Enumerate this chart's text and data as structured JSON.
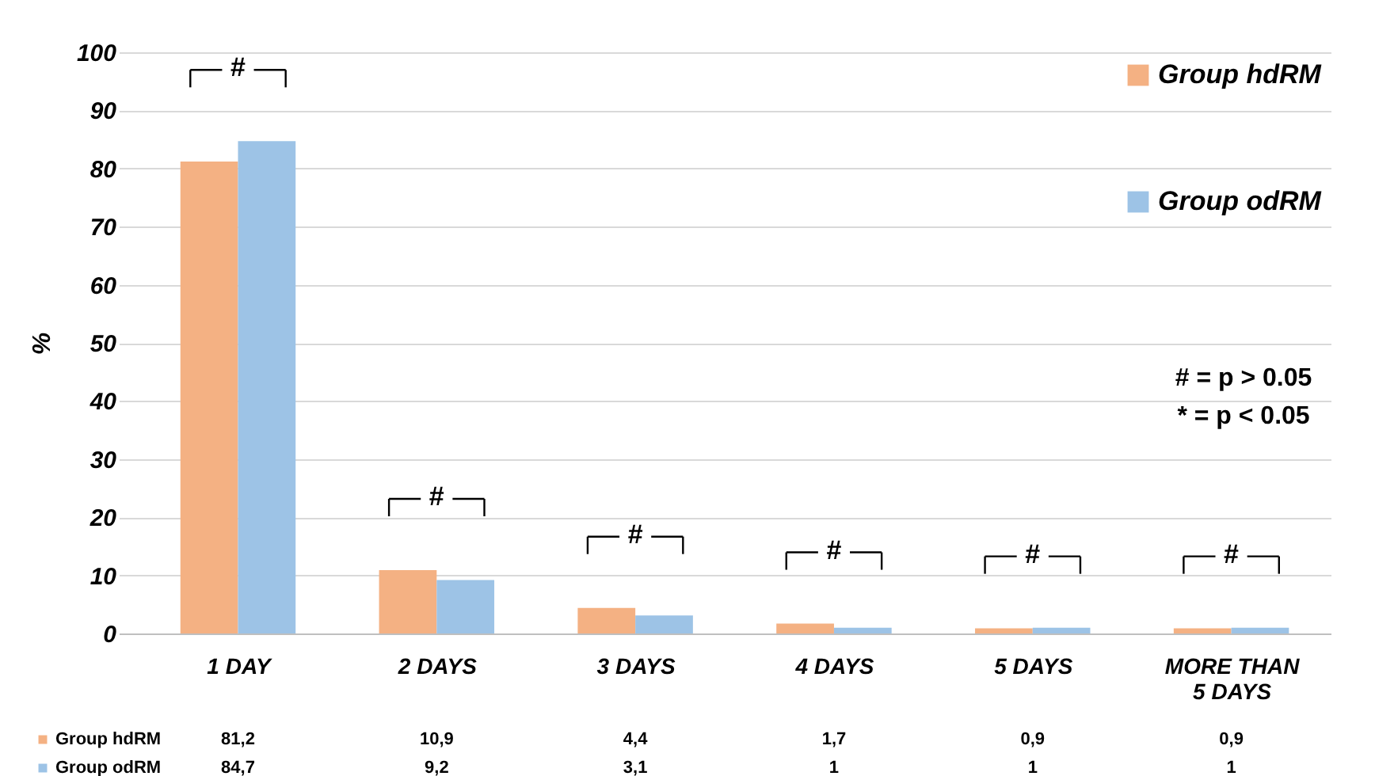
{
  "chart_data": {
    "type": "bar",
    "ylabel": "%",
    "categories": [
      "1 DAY",
      "2 DAYS",
      "3 DAYS",
      "4 DAYS",
      "5 DAYS",
      "MORE THAN 5 DAYS"
    ],
    "series": [
      {
        "name": "Group hdRM",
        "color": "#f4b183",
        "values": [
          81.2,
          10.9,
          4.4,
          1.7,
          0.9,
          0.9
        ],
        "value_labels": [
          "81,2",
          "10,9",
          "4,4",
          "1,7",
          "0,9",
          "0,9"
        ]
      },
      {
        "name": "Group odRM",
        "color": "#9dc3e6",
        "values": [
          84.7,
          9.2,
          3.1,
          1,
          1,
          1
        ],
        "value_labels": [
          "84,7",
          "9,2",
          "3,1",
          "1",
          "1",
          "1"
        ]
      }
    ],
    "ylim": [
      0,
      100
    ],
    "yticks": [
      0,
      10,
      20,
      30,
      40,
      50,
      60,
      70,
      80,
      90,
      100
    ],
    "grid": "y",
    "legend": "top right",
    "annotations": [
      {
        "text": "#",
        "x": "1 DAY",
        "y": 84.7
      },
      {
        "text": "#",
        "x": "2 DAYS",
        "y": 10.9
      },
      {
        "text": "#",
        "x": "3 DAYS",
        "y": 4.4
      },
      {
        "text": "#",
        "x": "4 DAYS",
        "y": 1.7
      },
      {
        "text": "#",
        "x": "5 DAYS",
        "y": 1
      },
      {
        "text": "#",
        "x": "MORE THAN 5 DAYS",
        "y": 1
      },
      "# = p > 0.05",
      "* = p < 0.05"
    ]
  }
}
